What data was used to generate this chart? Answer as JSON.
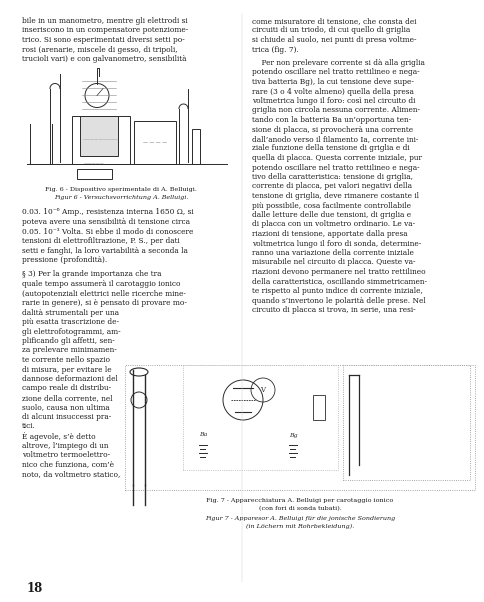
{
  "page_width": 4.85,
  "page_height": 6.02,
  "bg_color": "#ffffff",
  "text_color": "#1a1a1a",
  "left_col_top_text": [
    "bile in un manometro, mentre gli elettrodi si",
    "inseriscono in un compensatore potenziome-",
    "trico. Si sono esperimentati diversi setti po-",
    "rosi (arenarie, miscele di gesso, di tripoli,",
    "trucioli vari) e con galvanometro, sensibilità"
  ],
  "left_col_bottom_text_1": [
    "0.03. 10⁻⁶ Amp., resistenza interna 1650 Ω, si",
    "poteva avere una sensibilità di tensione circa",
    "0.05. 10⁻³ Volta. Si ebbe il modo di conoscere",
    "tensioni di elettrofiltrazione, P. S., per dati",
    "setti e fanghi, la loro variabilità a seconda la",
    "pressione (profondità)."
  ],
  "left_col_bottom_text_2": [
    "§ 3) Per la grande importanza che tra",
    "quale tempo assumerà il carotaggio ionico",
    "(autopotenziali elettrici nelle ricerche mine-",
    "rarie in genere), si è pensato di provare mo-",
    "dalità strumentali per una",
    "più esatta trascrizione de-",
    "gli elettrofotogrammi, am-",
    "plificando gli affetti, sen-",
    "za prelevare minimamen-",
    "te corrente nello spazio",
    "di misura, per evitare le",
    "dannose deformazioni del",
    "campo reale di distribu-",
    "zione della corrente, nel",
    "suolo, causa non ultima",
    "di alcuni insuccessi pra-",
    "tici.",
    "È agevole, s’è detto",
    "altrove, l’impiego di un",
    "voltmetro termoelettro-",
    "nico che funziona, com’è",
    "noto, da voltmetro statico,"
  ],
  "fig6_caption_it": "Fig. 6 - Dispositivo sperimentale di A. Belluigi.",
  "fig6_caption_de": "Figur 6 - Versuchsvorrichtung A. Belluigi.",
  "fig7_caption_it": "Fig. 7 - Apparecchiatura A. Belluigi per carotaggio ionico",
  "fig7_caption_it2": "(con fori di sonda tubati).",
  "fig7_caption_de": "Figur 7 - Apparesor A. Belluigi für die jonische Sondierung",
  "fig7_caption_de2": "(in Löchern mit Rohrbekleidung).",
  "right_col_top_text": [
    "come misuratore di tensione, che consta dei",
    "circuiti di un triodo, di cui quello di griglia",
    "si chiude al suolo, nei punti di presa voltme-",
    "trica (fig. 7)."
  ],
  "right_col_para2": [
    "    Per non prelevare corrente si dà alla griglia",
    "potendo oscillare nel tratto rettilineo e nega-",
    "tiva batteria Bg), la cui tensione deve supe-",
    "rare (3 o 4 volte almeno) quella della presa",
    "voltmetrica lungo il foro: così nel circuito di",
    "griglia non circola nessuna corrente. Alimen-",
    "tando con la batteria Ba un’opportuna ten-",
    "sione di placca, si provocherà una corrente",
    "dall’anodo verso il filamento Ia, corrente ini-",
    "ziale funzione della tensione di griglia e di",
    "quella di placca. Questa corrente iniziale, pur",
    "potendo oscillare nel tratto rettilineo e nega-",
    "tivo della caratteristica: tensione di griglia,",
    "corrente di placca, pei valori negativi della",
    "tensione di griglia, deve rimanere costante il",
    "più possibile, cosa facilmente controllabile",
    "dalle letture delle due tensioni, di griglia e",
    "di placca con un voltmetro ordinario. Le va-",
    "riazioni di tensione, apportate dalla presa",
    "voltmetrica lungo il foro di sonda, determine-",
    "ranno una variazione della corrente iniziale",
    "misurabile nel circuito di placca. Queste va-",
    "riazioni devono permanere nel tratto rettilineo",
    "della caratteristica, oscillando simmetricamen-",
    "te rispetto al punto indice di corrente iniziale,",
    "quando s’invertono le polarità delle prese. Nel",
    "circuito di placca si trova, in serie, una resi-"
  ],
  "page_number": "18"
}
